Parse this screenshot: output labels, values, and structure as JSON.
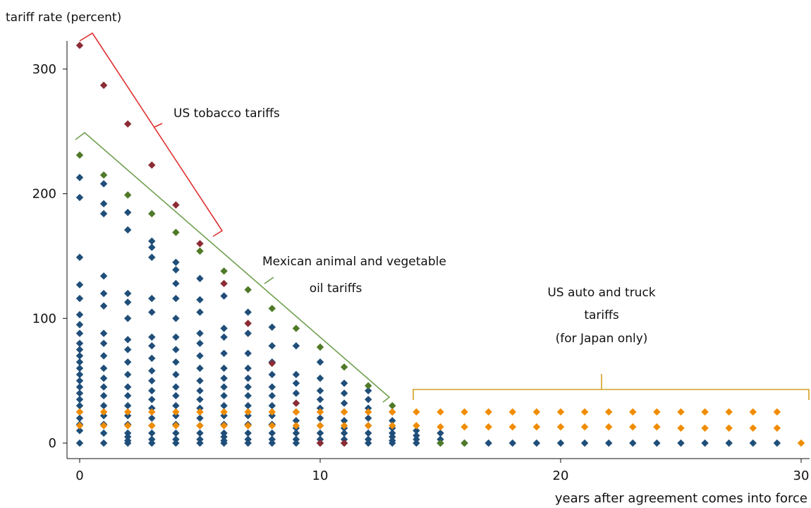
{
  "chart_data": {
    "type": "scatter",
    "title": "",
    "ylabel": "tariff rate (percent)",
    "xlabel": "years after agreement comes into force",
    "xlim": [
      -0.5,
      30.5
    ],
    "ylim": [
      -8,
      327
    ],
    "xticks": [
      0,
      10,
      20,
      30
    ],
    "yticks": [
      0,
      100,
      200,
      300
    ],
    "grid": false,
    "colors": {
      "blue": "#1f4e79",
      "red": "#8b2c34",
      "green": "#4f7a28",
      "orange": "#f08c00",
      "bracket_red": "#e03030",
      "bracket_green": "#70a050",
      "bracket_gold": "#d4a020"
    },
    "series": [
      {
        "color": "#1f4e79",
        "x": [
          0,
          0,
          0,
          0,
          0,
          0,
          0,
          0,
          0,
          0,
          0,
          0,
          0,
          0,
          0,
          0,
          0,
          0,
          0,
          0,
          0,
          0,
          0,
          0,
          1,
          1,
          1,
          1,
          1,
          1,
          1,
          1,
          1,
          1,
          1,
          1,
          1,
          1,
          1,
          1,
          1,
          1,
          2,
          2,
          2,
          2,
          2,
          2,
          2,
          2,
          2,
          2,
          2,
          2,
          2,
          2,
          2,
          2,
          2,
          2,
          3,
          3,
          3,
          3,
          3,
          3,
          3,
          3,
          3,
          3,
          3,
          3,
          3,
          3,
          3,
          3,
          3,
          3,
          4,
          4,
          4,
          4,
          4,
          4,
          4,
          4,
          4,
          4,
          4,
          4,
          4,
          4,
          4,
          4,
          4,
          5,
          5,
          5,
          5,
          5,
          5,
          5,
          5,
          5,
          5,
          5,
          5,
          5,
          5,
          5,
          5,
          6,
          6,
          6,
          6,
          6,
          6,
          6,
          6,
          6,
          6,
          6,
          6,
          6,
          6,
          6,
          7,
          7,
          7,
          7,
          7,
          7,
          7,
          7,
          7,
          7,
          7,
          7,
          7,
          8,
          8,
          8,
          8,
          8,
          8,
          8,
          8,
          8,
          8,
          8,
          8,
          9,
          9,
          9,
          9,
          9,
          9,
          9,
          9,
          9,
          9,
          9,
          10,
          10,
          10,
          10,
          10,
          10,
          10,
          10,
          10,
          10,
          11,
          11,
          11,
          11,
          11,
          11,
          11,
          11,
          11,
          12,
          12,
          12,
          12,
          12,
          12,
          12,
          12,
          13,
          13,
          13,
          13,
          13,
          13,
          13,
          14,
          14,
          14,
          14,
          15,
          15,
          15,
          16,
          17,
          18,
          19,
          20,
          21,
          22,
          23,
          24,
          25,
          26,
          27,
          28,
          29
        ],
        "y": [
          213,
          197,
          149,
          127,
          116,
          103,
          95,
          88,
          80,
          75,
          70,
          65,
          60,
          55,
          50,
          45,
          40,
          35,
          30,
          25,
          20,
          15,
          10,
          0,
          208,
          192,
          184,
          134,
          120,
          110,
          88,
          80,
          70,
          60,
          52,
          45,
          38,
          30,
          22,
          15,
          8,
          0,
          185,
          171,
          120,
          113,
          100,
          83,
          75,
          65,
          55,
          45,
          38,
          30,
          22,
          15,
          8,
          5,
          2,
          0,
          162,
          157,
          149,
          116,
          105,
          85,
          78,
          68,
          58,
          50,
          42,
          35,
          28,
          20,
          14,
          8,
          3,
          0,
          145,
          139,
          128,
          116,
          100,
          85,
          75,
          65,
          55,
          45,
          38,
          30,
          22,
          15,
          8,
          3,
          0,
          132,
          115,
          105,
          88,
          80,
          70,
          60,
          50,
          42,
          35,
          28,
          20,
          14,
          8,
          3,
          0,
          118,
          92,
          85,
          72,
          60,
          52,
          45,
          38,
          30,
          22,
          15,
          8,
          5,
          2,
          0,
          105,
          88,
          72,
          60,
          52,
          45,
          38,
          30,
          22,
          15,
          8,
          3,
          0,
          93,
          78,
          65,
          55,
          45,
          38,
          30,
          22,
          15,
          8,
          3,
          0,
          78,
          55,
          48,
          40,
          32,
          25,
          18,
          12,
          8,
          3,
          0,
          65,
          52,
          42,
          35,
          28,
          20,
          14,
          8,
          3,
          0,
          48,
          40,
          32,
          25,
          18,
          12,
          8,
          3,
          0,
          42,
          35,
          28,
          20,
          14,
          8,
          3,
          0,
          25,
          18,
          12,
          8,
          5,
          2,
          0,
          10,
          6,
          3,
          0,
          8,
          3,
          0,
          0,
          0,
          0,
          0,
          0,
          0,
          0,
          0,
          0,
          0,
          0,
          0,
          0,
          0
        ]
      },
      {
        "color": "#8b2c34",
        "x": [
          0,
          1,
          2,
          3,
          4,
          5,
          6,
          7,
          8,
          9,
          10,
          11
        ],
        "y": [
          319,
          287,
          256,
          223,
          191,
          160,
          128,
          96,
          64,
          32,
          0,
          0
        ]
      },
      {
        "color": "#4f7a28",
        "x": [
          0,
          1,
          2,
          3,
          4,
          5,
          6,
          7,
          8,
          9,
          10,
          11,
          12,
          13,
          15,
          16
        ],
        "y": [
          231,
          215,
          199,
          184,
          169,
          154,
          138,
          123,
          108,
          92,
          77,
          61,
          46,
          30,
          0,
          0
        ]
      },
      {
        "color": "#f08c00",
        "x": [
          0,
          1,
          2,
          3,
          4,
          5,
          6,
          7,
          8,
          9,
          10,
          11,
          12,
          13,
          14,
          15,
          16,
          17,
          18,
          19,
          20,
          21,
          22,
          23,
          24,
          25,
          26,
          27,
          28,
          29,
          0,
          1,
          2,
          3,
          4,
          5,
          6,
          7,
          8,
          9,
          10,
          11,
          12,
          13,
          14,
          15,
          16,
          17,
          18,
          19,
          20,
          21,
          22,
          23,
          24,
          25,
          26,
          27,
          28,
          29,
          30
        ],
        "y": [
          25,
          25,
          25,
          25,
          25,
          25,
          25,
          25,
          25,
          25,
          25,
          25,
          25,
          25,
          25,
          25,
          25,
          25,
          25,
          25,
          25,
          25,
          25,
          25,
          25,
          25,
          25,
          25,
          25,
          25,
          14,
          14,
          14,
          14,
          14,
          14,
          14,
          14,
          14,
          14,
          14,
          14,
          14,
          14,
          14,
          13,
          13,
          13,
          13,
          13,
          13,
          13,
          13,
          13,
          13,
          12,
          12,
          12,
          12,
          12,
          0
        ]
      }
    ],
    "annotations": [
      {
        "lines": [
          "US tobacco tariffs"
        ]
      },
      {
        "lines": [
          "Mexican animal  and vegetable",
          "oil tariffs"
        ]
      },
      {
        "lines": [
          "US auto and truck",
          "tariffs",
          "(for Japan only)"
        ]
      }
    ]
  }
}
